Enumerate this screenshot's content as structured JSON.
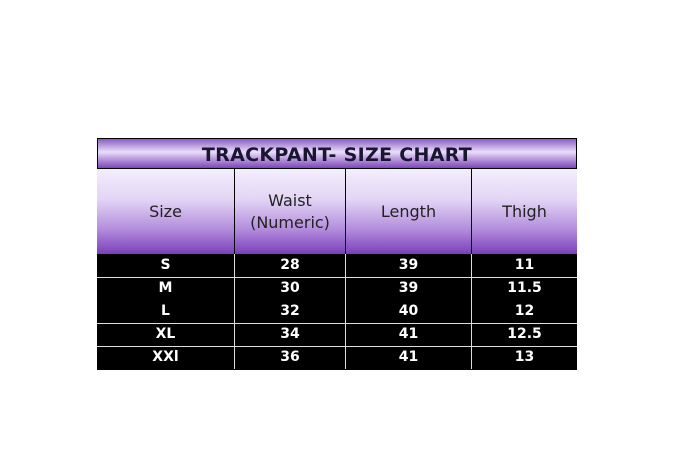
{
  "title": "TRACKPANT- SIZE CHART",
  "headers": [
    "Size",
    "Waist\n(Numeric)",
    "Length",
    "Thigh"
  ],
  "header_lines": {
    "waist_1": "Waist",
    "waist_2": "(Numeric)"
  },
  "rows": [
    [
      "S",
      "28",
      "39",
      "11"
    ],
    [
      "M",
      "30",
      "39",
      "11.5"
    ],
    [
      "L",
      "32",
      "40",
      "12"
    ],
    [
      "XL",
      "34",
      "41",
      "12.5"
    ],
    [
      "XXl",
      "36",
      "41",
      "13"
    ]
  ],
  "colors": {
    "header_purple": "#7a3fba",
    "body_bg": "#000000",
    "body_text": "#ffffff"
  }
}
